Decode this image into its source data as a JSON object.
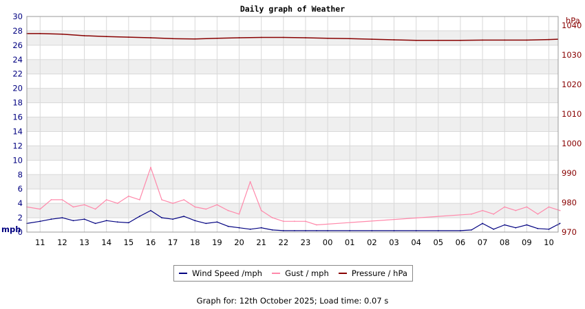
{
  "chart_data": {
    "type": "line",
    "title": "Daily graph of Weather",
    "x_tick_labels": [
      "11",
      "12",
      "13",
      "14",
      "15",
      "16",
      "17",
      "18",
      "19",
      "20",
      "21",
      "22",
      "23",
      "00",
      "01",
      "02",
      "03",
      "04",
      "05",
      "06",
      "07",
      "08",
      "09",
      "10"
    ],
    "left_axis": {
      "unit_label": "mph",
      "ylim": [
        0,
        30
      ],
      "ticks": [
        0,
        2,
        4,
        6,
        8,
        10,
        12,
        14,
        16,
        18,
        20,
        22,
        24,
        26,
        28,
        30
      ]
    },
    "right_axis": {
      "unit_label": "hPa",
      "ylim": [
        970,
        1043
      ],
      "ticks": [
        970,
        980,
        990,
        1000,
        1010,
        1020,
        1030,
        1040
      ]
    },
    "grid": true,
    "legend_position": "bottom",
    "series": [
      {
        "name": "Wind Speed /mph",
        "axis": "left",
        "color": "#000080",
        "x": [
          10.4,
          11,
          11.5,
          12,
          12.5,
          13,
          13.5,
          14,
          14.5,
          15,
          15.5,
          16,
          16.5,
          17,
          17.5,
          18,
          18.5,
          19,
          19.5,
          20,
          20.5,
          21,
          21.5,
          22,
          22.5,
          23,
          23.5,
          24,
          25,
          26,
          27,
          28,
          29,
          30,
          30.5,
          31,
          31.5,
          32,
          32.5,
          33,
          33.5,
          34,
          34.5,
          34.4
        ],
        "values": [
          1.2,
          1.5,
          1.8,
          2.0,
          1.6,
          1.8,
          1.2,
          1.6,
          1.4,
          1.3,
          2.2,
          3.0,
          2.0,
          1.8,
          2.2,
          1.6,
          1.2,
          1.4,
          0.8,
          0.6,
          0.4,
          0.6,
          0.3,
          0.2,
          0.2,
          0.2,
          0.2,
          0.2,
          0.2,
          0.2,
          0.2,
          0.2,
          0.2,
          0.2,
          0.3,
          1.2,
          0.4,
          1.0,
          0.6,
          1.0,
          0.5,
          0.4,
          1.2,
          1.0
        ]
      },
      {
        "name": "Gust / mph",
        "axis": "left",
        "color": "#ff88aa",
        "x": [
          10.4,
          11,
          11.5,
          12,
          12.5,
          13,
          13.5,
          14,
          14.5,
          15,
          15.5,
          16,
          16.5,
          17,
          17.5,
          18,
          18.5,
          19,
          19.5,
          20,
          20.5,
          21,
          21.5,
          22,
          22.5,
          23,
          23.5,
          30.5,
          31,
          31.5,
          32,
          32.5,
          33,
          33.5,
          34,
          34.5
        ],
        "values": [
          3.5,
          3.2,
          4.5,
          4.5,
          3.5,
          3.8,
          3.2,
          4.5,
          4.0,
          5.0,
          4.5,
          9.0,
          4.5,
          4.0,
          4.5,
          3.5,
          3.2,
          3.8,
          3.0,
          2.5,
          7.0,
          3.0,
          2.0,
          1.5,
          1.5,
          1.5,
          1.0,
          2.5,
          3.0,
          2.5,
          3.5,
          3.0,
          3.5,
          2.5,
          3.5,
          3.0
        ]
      },
      {
        "name": "Pressure / hPa",
        "axis": "right",
        "color": "#880000",
        "x": [
          10.4,
          11,
          12,
          13,
          14,
          15,
          16,
          17,
          18,
          19,
          20,
          21,
          22,
          23,
          24,
          25,
          26,
          27,
          28,
          29,
          30,
          31,
          32,
          33,
          34,
          34.4
        ],
        "values": [
          1037.2,
          1037.2,
          1037.0,
          1036.5,
          1036.2,
          1036.0,
          1035.8,
          1035.5,
          1035.4,
          1035.6,
          1035.8,
          1035.9,
          1035.9,
          1035.8,
          1035.6,
          1035.5,
          1035.3,
          1035.1,
          1034.9,
          1034.9,
          1034.9,
          1035.0,
          1035.0,
          1035.0,
          1035.2,
          1035.3
        ]
      }
    ]
  },
  "footer_text": "Graph for: 12th October 2025; Load time: 0.07 s",
  "colors": {
    "left_axis": "#000080",
    "right_axis": "#880000",
    "band": "#efefef",
    "grid": "#d8d8d8"
  }
}
